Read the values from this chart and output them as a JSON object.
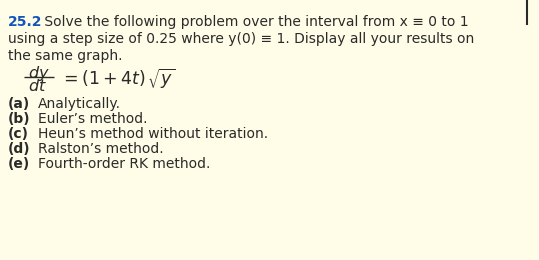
{
  "problem_number": "25.2",
  "background_color": "#FFFDE7",
  "text_color": "#2a2a2a",
  "problem_number_color": "#1155BB",
  "main_text_line1": " Solve the following problem over the interval from x ≡ 0 to 1",
  "main_text_line2": "using a step size of 0.25 where y(0) ≡ 1. Display all your results on",
  "main_text_line3": "the same graph.",
  "items_bold": [
    "(a)",
    "(b)",
    "(c)",
    "(d)",
    "(e)"
  ],
  "items_normal": [
    " Analytically.",
    " Euler’s method.",
    " Heun’s method without iteration.",
    " Ralston’s method.",
    " Fourth-order RK method."
  ],
  "font_size_main": 10.0,
  "font_size_equation": 11.5,
  "font_size_items": 10.0,
  "figsize": [
    5.39,
    2.6
  ],
  "dpi": 100
}
